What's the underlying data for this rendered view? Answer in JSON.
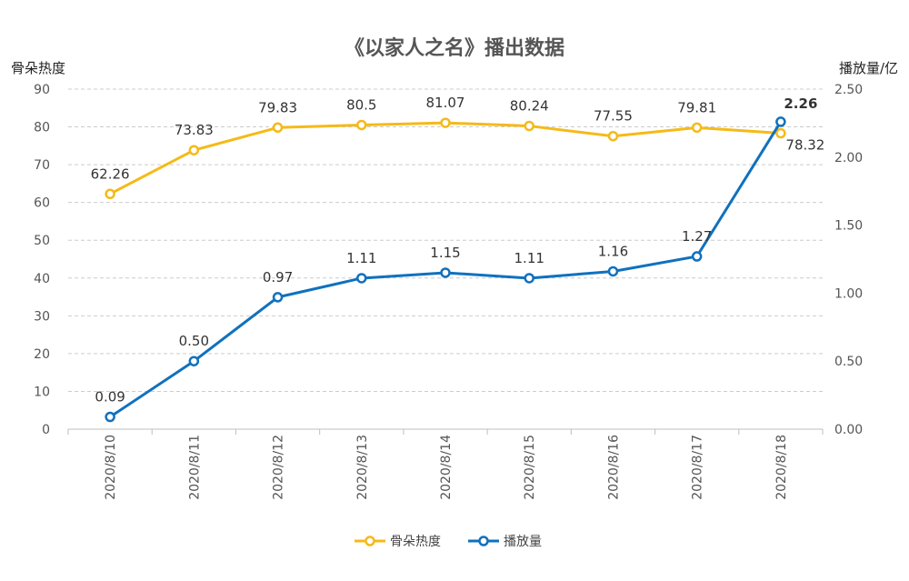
{
  "chart_data": {
    "type": "line",
    "title": "《以家人之名》播出数据",
    "categories": [
      "2020/8/10",
      "2020/8/11",
      "2020/8/12",
      "2020/8/13",
      "2020/8/14",
      "2020/8/15",
      "2020/8/16",
      "2020/8/17",
      "2020/8/18"
    ],
    "y_left": {
      "label": "骨朵热度",
      "ylim": [
        0,
        90
      ],
      "ticks": [
        "0",
        "10",
        "20",
        "30",
        "40",
        "50",
        "60",
        "70",
        "80",
        "90"
      ]
    },
    "y_right": {
      "label": "播放量/亿",
      "ylim": [
        0,
        2.5
      ],
      "ticks": [
        "0.00",
        "0.50",
        "1.00",
        "1.50",
        "2.00",
        "2.50"
      ]
    },
    "grid": true,
    "legend_position": "bottom",
    "series": [
      {
        "name": "骨朵热度",
        "axis": "left",
        "color": "#F5BA18",
        "values": [
          62.26,
          73.83,
          79.83,
          80.5,
          81.07,
          80.24,
          77.55,
          79.81,
          78.32
        ],
        "labels": [
          "62.26",
          "73.83",
          "79.83",
          "80.5",
          "81.07",
          "80.24",
          "77.55",
          "79.81",
          "78.32"
        ]
      },
      {
        "name": "播放量",
        "axis": "right",
        "color": "#1071BE",
        "values": [
          0.09,
          0.5,
          0.97,
          1.11,
          1.15,
          1.11,
          1.16,
          1.27,
          2.26
        ],
        "labels": [
          "0.09",
          "0.50",
          "0.97",
          "1.11",
          "1.15",
          "1.11",
          "1.16",
          "1.27",
          "2.26"
        ]
      }
    ]
  }
}
